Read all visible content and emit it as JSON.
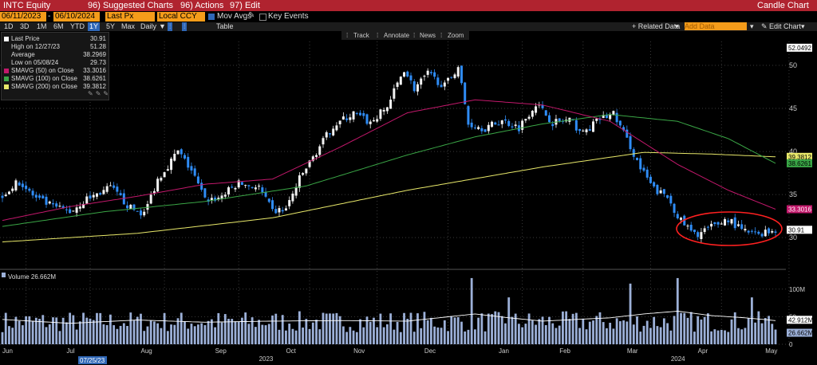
{
  "header": {
    "ticker": "INTC Equity",
    "suggested_charts": "96) Suggested Charts",
    "actions": "96) Actions",
    "edit": "97) Edit",
    "title": "Candle Chart"
  },
  "controls": {
    "start_date": "06/11/2023",
    "end_date": "06/10/2024",
    "field": "Last Px",
    "currency": "Local CCY",
    "mov_avgs": "Mov Avgs",
    "key_events": "Key Events",
    "periods": [
      "1D",
      "3D",
      "1M",
      "6M",
      "YTD",
      "1Y",
      "5Y",
      "Max"
    ],
    "selected_period": "1Y",
    "frequency": "Daily",
    "table": "Table",
    "related_data": "+ Related Data",
    "add_data_placeholder": "Add Data",
    "edit_chart": "Edit Chart",
    "tools": [
      "Track",
      "Annotate",
      "News",
      "Zoom"
    ]
  },
  "legend": {
    "rows": [
      {
        "label": "Last Price",
        "value": "30.91",
        "color": "#ffffff"
      },
      {
        "label": "High on 12/27/23",
        "value": "51.28",
        "color": ""
      },
      {
        "label": "Average",
        "value": "38.2969",
        "color": ""
      },
      {
        "label": "Low on 05/08/24",
        "value": "29.73",
        "color": ""
      },
      {
        "label": "SMAVG (50)  on Close",
        "value": "33.3016",
        "color": "#c2186b"
      },
      {
        "label": "SMAVG (100)  on Close",
        "value": "38.6261",
        "color": "#3aa646"
      },
      {
        "label": "SMAVG (200)  on Close",
        "value": "39.3812",
        "color": "#e8e86a"
      }
    ]
  },
  "volume_legend": "Volume 26.662M",
  "date_marker": "07/25/23",
  "chart_data": {
    "type": "candlestick",
    "x_labels": [
      "Jun",
      "Jul",
      "Aug",
      "Sep",
      "Oct",
      "Nov",
      "Dec",
      "Jan",
      "Feb",
      "Mar",
      "Apr",
      "May"
    ],
    "year_labels": [
      "2023",
      "2024"
    ],
    "price_axis": {
      "ticks": [
        30,
        35,
        40,
        45,
        50
      ],
      "ylim": [
        26.5,
        52.5
      ]
    },
    "price_tags": [
      {
        "label": "52.0492",
        "value": 52.05,
        "color": "#000000",
        "bg": "#ffffff"
      },
      {
        "label": "39.3812",
        "value": 39.38,
        "color": "#000000",
        "bg": "#e8e86a"
      },
      {
        "label": "38.6261",
        "value": 38.63,
        "color": "#000000",
        "bg": "#3aa646"
      },
      {
        "label": "33.3016",
        "value": 33.3,
        "color": "#ffffff",
        "bg": "#c2186b"
      },
      {
        "label": "30.91",
        "value": 30.91,
        "color": "#000000",
        "bg": "#ffffff"
      }
    ],
    "volume_axis": {
      "ticks": [
        0,
        50,
        100
      ],
      "tick_labels": [
        "0",
        "50",
        "100M"
      ],
      "ylim": [
        0,
        130
      ]
    },
    "volume_tags": [
      {
        "label": "42.912M",
        "value": 42.912,
        "color": "#000000",
        "bg": "#ffffff"
      },
      {
        "label": "26.662M",
        "value": 26.662,
        "color": "#000000",
        "bg": "#9cb0d8"
      }
    ],
    "price_keypoints": [
      [
        0,
        35.0
      ],
      [
        5,
        36.5
      ],
      [
        10,
        34.5
      ],
      [
        15,
        33.6
      ],
      [
        20,
        33.0
      ],
      [
        25,
        34.5
      ],
      [
        32,
        35.8
      ],
      [
        38,
        33.4
      ],
      [
        42,
        32.8
      ],
      [
        46,
        36.8
      ],
      [
        52,
        40.0
      ],
      [
        56,
        37.8
      ],
      [
        60,
        34.4
      ],
      [
        64,
        34.6
      ],
      [
        70,
        36.3
      ],
      [
        76,
        35.8
      ],
      [
        80,
        33.0
      ],
      [
        84,
        33.3
      ],
      [
        88,
        36.8
      ],
      [
        94,
        40.6
      ],
      [
        98,
        43.0
      ],
      [
        104,
        44.4
      ],
      [
        109,
        43.3
      ],
      [
        114,
        45.2
      ],
      [
        119,
        49.6
      ],
      [
        122,
        47.3
      ],
      [
        126,
        49.0
      ],
      [
        131,
        47.6
      ],
      [
        135,
        49.9
      ],
      [
        138,
        43.2
      ],
      [
        143,
        42.7
      ],
      [
        148,
        43.6
      ],
      [
        153,
        42.8
      ],
      [
        158,
        45.6
      ],
      [
        163,
        43.4
      ],
      [
        168,
        43.6
      ],
      [
        172,
        42.1
      ],
      [
        177,
        43.8
      ],
      [
        181,
        44.4
      ],
      [
        186,
        40.6
      ],
      [
        189,
        38.0
      ],
      [
        193,
        35.6
      ],
      [
        197,
        34.7
      ],
      [
        201,
        31.9
      ],
      [
        205,
        30.3
      ],
      [
        210,
        31.2
      ],
      [
        215,
        32.2
      ],
      [
        219,
        30.8
      ],
      [
        223,
        30.4
      ],
      [
        229,
        30.91
      ]
    ],
    "sma50_keypoints": [
      [
        0,
        32.0
      ],
      [
        20,
        33.6
      ],
      [
        40,
        34.8
      ],
      [
        60,
        36.2
      ],
      [
        80,
        36.8
      ],
      [
        100,
        40.5
      ],
      [
        120,
        44.5
      ],
      [
        140,
        46.0
      ],
      [
        160,
        45.4
      ],
      [
        180,
        43.5
      ],
      [
        200,
        38.5
      ],
      [
        215,
        35.5
      ],
      [
        229,
        33.3
      ]
    ],
    "sma100_keypoints": [
      [
        0,
        31.3
      ],
      [
        30,
        33.0
      ],
      [
        60,
        34.2
      ],
      [
        90,
        36.0
      ],
      [
        120,
        39.6
      ],
      [
        140,
        41.7
      ],
      [
        160,
        43.2
      ],
      [
        180,
        44.3
      ],
      [
        200,
        43.5
      ],
      [
        215,
        41.5
      ],
      [
        229,
        38.63
      ]
    ],
    "sma200_keypoints": [
      [
        0,
        29.5
      ],
      [
        40,
        30.5
      ],
      [
        80,
        32.3
      ],
      [
        120,
        35.5
      ],
      [
        160,
        38.2
      ],
      [
        190,
        39.9
      ],
      [
        210,
        39.7
      ],
      [
        229,
        39.38
      ]
    ],
    "volume_summary": {
      "typical_millions": 40,
      "spike_days": [
        [
          139,
          120
        ],
        [
          150,
          85
        ],
        [
          186,
          110
        ],
        [
          200,
          120
        ],
        [
          222,
          85
        ]
      ],
      "last_millions": 26.662
    },
    "volume_avg_keypoints": [
      [
        0,
        45
      ],
      [
        20,
        38
      ],
      [
        40,
        44
      ],
      [
        60,
        40
      ],
      [
        80,
        42
      ],
      [
        100,
        43
      ],
      [
        120,
        42
      ],
      [
        140,
        55
      ],
      [
        150,
        48
      ],
      [
        160,
        42
      ],
      [
        180,
        48
      ],
      [
        190,
        55
      ],
      [
        200,
        60
      ],
      [
        210,
        52
      ],
      [
        220,
        48
      ],
      [
        229,
        42.9
      ]
    ]
  }
}
